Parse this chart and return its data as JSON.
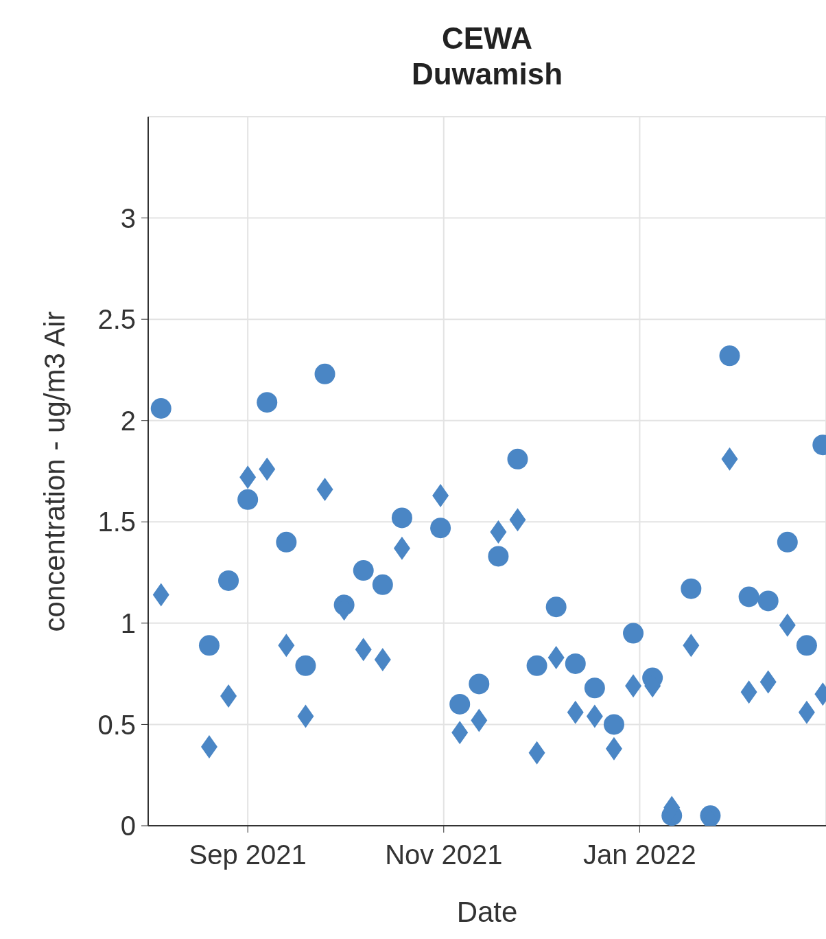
{
  "chart_data": {
    "type": "scatter",
    "title": "CEWA",
    "subtitle": "Duwamish",
    "xlabel": "Date",
    "ylabel": "concentration - ug/m3 Air",
    "xlim": [
      "2021-08-01",
      "2022-02-28"
    ],
    "xticks": [
      {
        "value": "2021-09-01",
        "label": "Sep 2021"
      },
      {
        "value": "2021-11-01",
        "label": "Nov 2021"
      },
      {
        "value": "2022-01-01",
        "label": "Jan 2022"
      }
    ],
    "ylim": [
      0,
      3.5
    ],
    "yticks": [
      0,
      0.5,
      1,
      1.5,
      2,
      2.5,
      3
    ],
    "grid": true,
    "legend": false,
    "series": [
      {
        "color": "#4a86c5",
        "marker": "circle",
        "x": [
          "2021-08-05",
          "2021-08-20",
          "2021-08-26",
          "2021-09-01",
          "2021-09-07",
          "2021-09-13",
          "2021-09-19",
          "2021-09-25",
          "2021-10-01",
          "2021-10-07",
          "2021-10-13",
          "2021-10-19",
          "2021-10-31",
          "2021-11-06",
          "2021-11-12",
          "2021-11-18",
          "2021-11-24",
          "2021-11-30",
          "2021-12-06",
          "2021-12-12",
          "2021-12-18",
          "2021-12-24",
          "2021-12-30",
          "2022-01-05",
          "2022-01-11",
          "2022-01-17",
          "2022-01-23",
          "2022-01-29",
          "2022-02-04",
          "2022-02-10",
          "2022-02-16",
          "2022-02-22",
          "2022-02-27"
        ],
        "values": [
          2.06,
          0.89,
          1.21,
          1.61,
          2.09,
          1.4,
          0.79,
          2.23,
          1.09,
          1.26,
          1.19,
          1.52,
          1.47,
          0.6,
          0.7,
          1.33,
          1.81,
          0.79,
          1.08,
          0.8,
          0.68,
          0.5,
          0.95,
          0.73,
          0.05,
          1.17,
          0.05,
          2.32,
          1.13,
          1.11,
          1.4,
          0.89,
          1.88
        ]
      },
      {
        "color": "#4a86c5",
        "marker": "diamond",
        "x": [
          "2021-08-05",
          "2021-08-20",
          "2021-08-26",
          "2021-09-01",
          "2021-09-07",
          "2021-09-13",
          "2021-09-19",
          "2021-09-25",
          "2021-10-01",
          "2021-10-07",
          "2021-10-13",
          "2021-10-19",
          "2021-10-31",
          "2021-11-06",
          "2021-11-12",
          "2021-11-18",
          "2021-11-24",
          "2021-11-30",
          "2021-12-06",
          "2021-12-12",
          "2021-12-18",
          "2021-12-24",
          "2021-12-30",
          "2022-01-05",
          "2022-01-11",
          "2022-01-17",
          "2022-01-23",
          "2022-01-29",
          "2022-02-04",
          "2022-02-10",
          "2022-02-16",
          "2022-02-22",
          "2022-02-27"
        ],
        "values": [
          1.14,
          0.39,
          0.64,
          1.72,
          1.76,
          0.89,
          0.54,
          1.66,
          1.07,
          0.87,
          0.82,
          1.37,
          1.63,
          0.46,
          0.52,
          1.45,
          1.51,
          0.36,
          0.83,
          0.56,
          0.54,
          0.38,
          0.69,
          0.69,
          0.09,
          0.89,
          0.02,
          1.81,
          0.66,
          0.71,
          0.99,
          0.56,
          0.65
        ]
      }
    ]
  }
}
